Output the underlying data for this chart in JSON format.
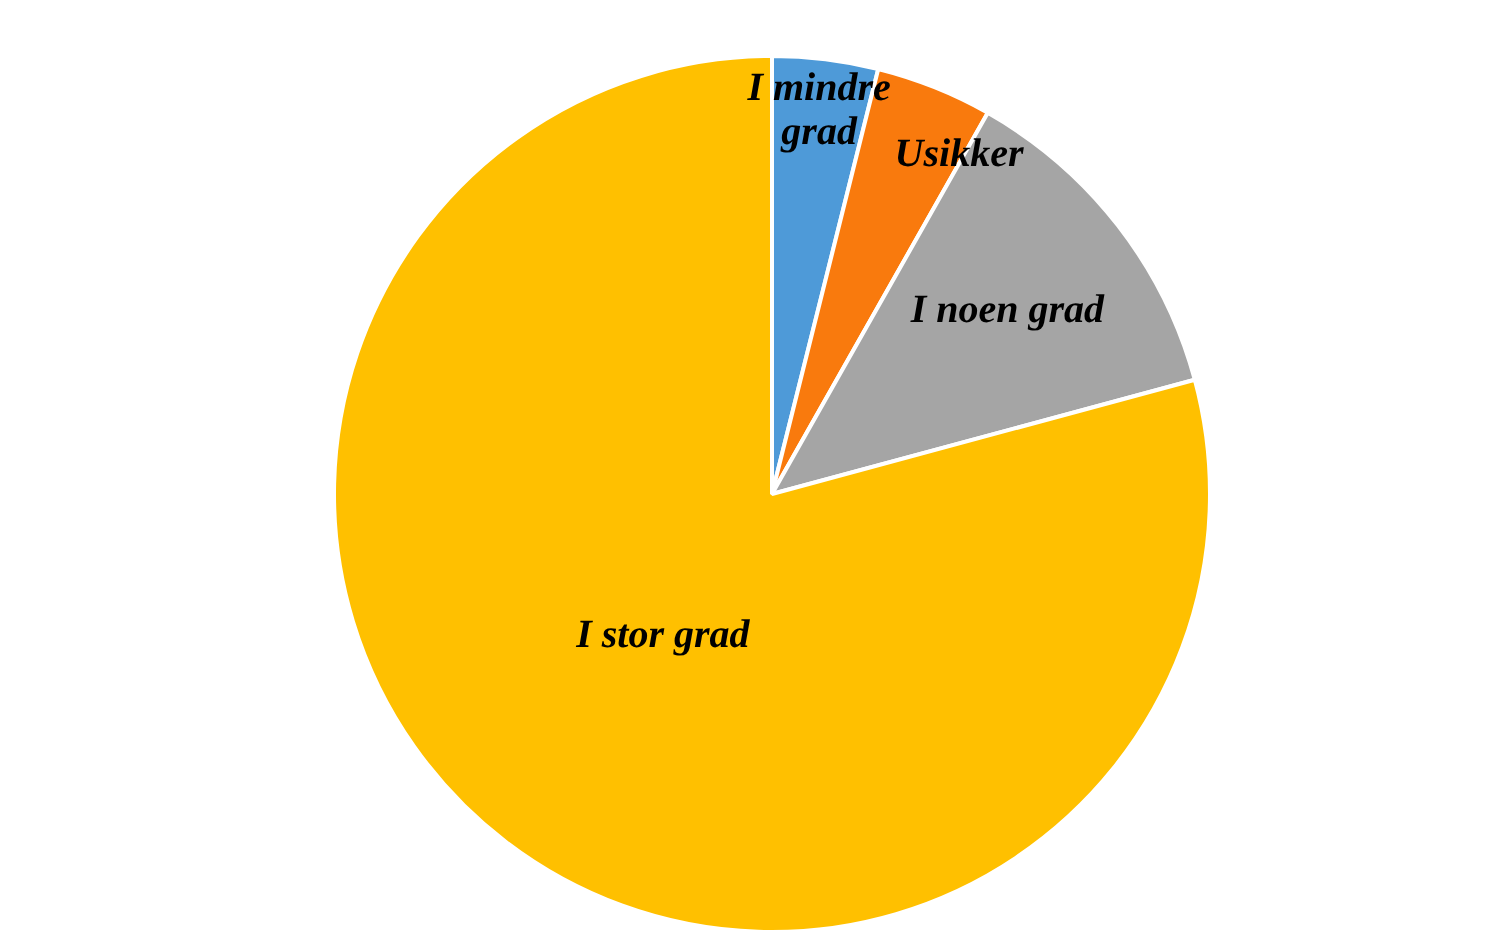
{
  "chart_data": {
    "type": "pie",
    "categories": [
      "I mindre grad",
      "Usikker",
      "I noen grad",
      "I stor grad"
    ],
    "values": [
      3.9,
      4.3,
      12.6,
      79.2
    ],
    "colors": [
      "#4e9ad8",
      "#f97a0d",
      "#a5a5a5",
      "#ffc000"
    ]
  }
}
